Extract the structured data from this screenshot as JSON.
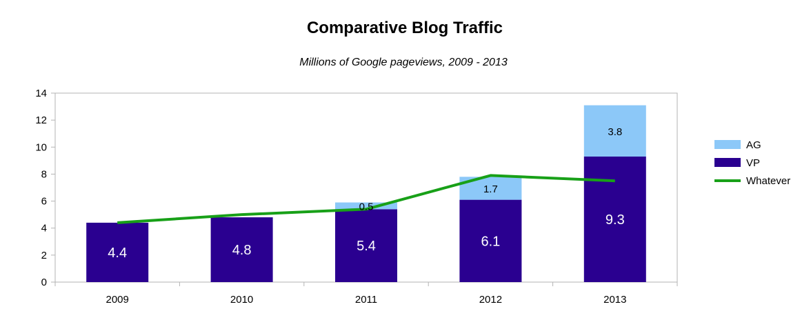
{
  "chart_data": {
    "type": "bar",
    "title": "Comparative Blog Traffic",
    "subtitle": "Millions of Google pageviews, 2009 - 2013",
    "xlabel": "",
    "ylabel": "",
    "categories": [
      "2009",
      "2010",
      "2011",
      "2012",
      "2013"
    ],
    "stacked": true,
    "ylim": [
      0,
      14
    ],
    "yticks": [
      0,
      2,
      4,
      6,
      8,
      10,
      12,
      14
    ],
    "grid": false,
    "legend_position": "right",
    "series": [
      {
        "name": "VP",
        "kind": "bar",
        "color": "#2a0090",
        "values": [
          4.4,
          4.8,
          5.4,
          6.1,
          9.3
        ],
        "labels": [
          "4.4",
          "4.8",
          "5.4",
          "6.1",
          "9.3"
        ]
      },
      {
        "name": "AG",
        "kind": "bar",
        "color": "#8cc8f8",
        "values": [
          0,
          0,
          0.5,
          1.7,
          3.8
        ],
        "labels": [
          "",
          "",
          "0.5",
          "1.7",
          "3.8"
        ]
      },
      {
        "name": "Whatever",
        "kind": "line",
        "color": "#18a018",
        "values": [
          4.4,
          5.0,
          5.4,
          7.9,
          7.5
        ]
      }
    ],
    "legend": [
      "AG",
      "VP",
      "Whatever"
    ]
  }
}
